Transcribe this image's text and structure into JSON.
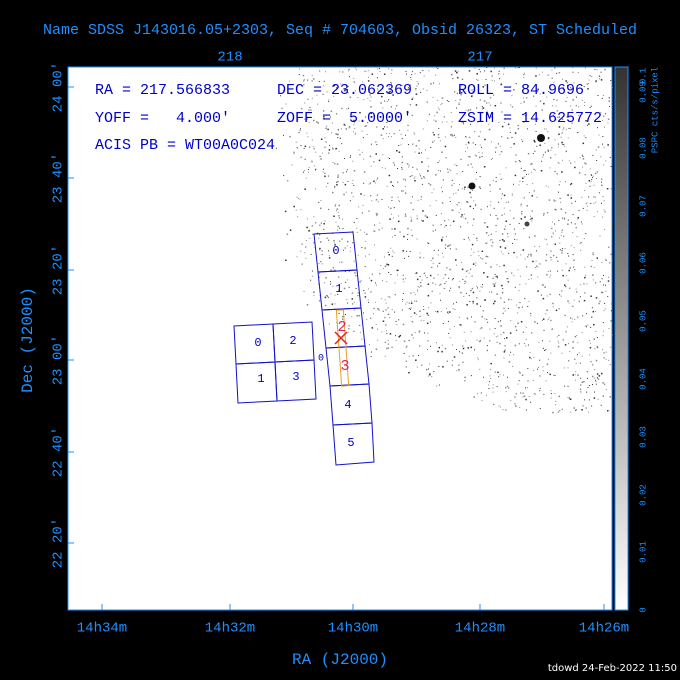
{
  "title": "Name SDSS J143016.05+2303, Seq # 704603, Obsid 26323, ST Scheduled",
  "info": [
    "RA = 217.566833",
    "DEC = 23.062369",
    "ROLL = 84.9696",
    "YOFF =   4.000'",
    "ZOFF =  5.0000'",
    "ZSIM = 14.625772",
    "ACIS PB = WT00A0C024"
  ],
  "axes": {
    "x_label": "RA (J2000)",
    "y_label": "Dec (J2000)",
    "top_ticks": [
      "218",
      "217"
    ],
    "x_ticks": [
      "14h34m",
      "14h32m",
      "14h30m",
      "14h28m",
      "14h26m"
    ],
    "y_ticks": [
      "24 00'",
      "23 40'",
      "23 20'",
      "23 00'",
      "22 40'",
      "22 20'"
    ]
  },
  "colorbar": {
    "label": "PSPC cts/s/pixel",
    "ticks": [
      "0",
      "0.01",
      "0.02",
      "0.03",
      "0.04",
      "0.05",
      "0.06",
      "0.07",
      "0.08",
      "0.09",
      "0.1"
    ]
  },
  "chips": {
    "i_array": [
      "0",
      "2",
      "1",
      "3"
    ],
    "s_array": [
      "0",
      "1",
      "2",
      "3",
      "4",
      "5"
    ],
    "marker": "0"
  },
  "footer": "tdowd 24-Feb-2022 11:50"
}
